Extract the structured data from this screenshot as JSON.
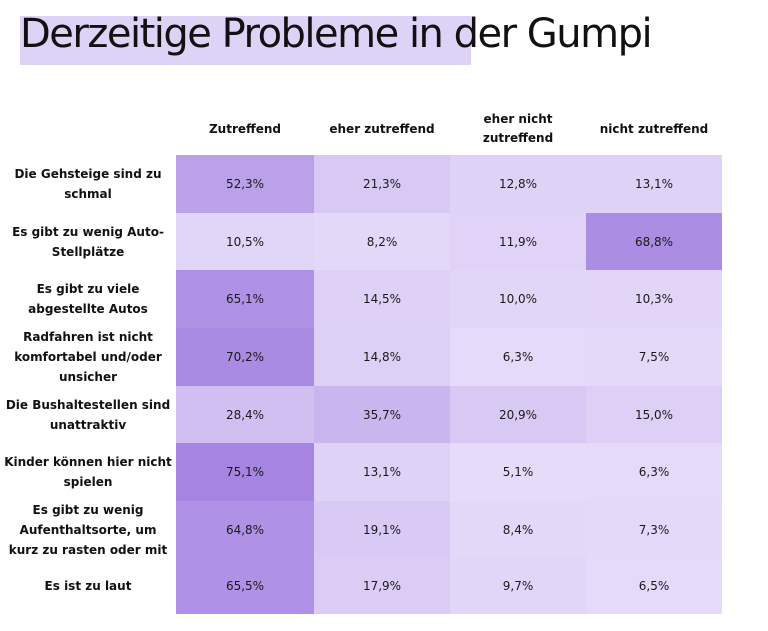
{
  "title": "Derzeitige Probleme in der Gumpi",
  "chart_data": {
    "type": "heatmap",
    "title": "Derzeitige Probleme in der Gumpi",
    "columns": [
      "Zutreffend",
      "eher zutreffend",
      "eher nicht zutreffend",
      "nicht zutreffend"
    ],
    "rows": [
      "Die Gehsteige sind zu schmal",
      "Es gibt zu wenig Auto-Stellplätze",
      "Es gibt zu viele abgestellte Autos",
      "Radfahren ist nicht komfortabel und/oder unsicher",
      "Die Bushaltestellen sind unattraktiv",
      "Kinder können hier nicht spielen",
      "Es gibt zu wenig Aufenthaltsorte, um kurz zu rasten oder mit",
      "Es ist zu laut"
    ],
    "values": [
      [
        52.3,
        21.3,
        12.8,
        13.1
      ],
      [
        10.5,
        8.2,
        11.9,
        68.8
      ],
      [
        65.1,
        14.5,
        10.0,
        10.3
      ],
      [
        70.2,
        14.8,
        6.3,
        7.5
      ],
      [
        28.4,
        35.7,
        20.9,
        15.0
      ],
      [
        75.1,
        13.1,
        5.1,
        6.3
      ],
      [
        64.8,
        19.1,
        8.4,
        7.3
      ],
      [
        65.5,
        17.9,
        9.7,
        6.5
      ]
    ],
    "labels": [
      [
        "52,3%",
        "21,3%",
        "12,8%",
        "13,1%"
      ],
      [
        "10,5%",
        "8,2%",
        "11,9%",
        "68,8%"
      ],
      [
        "65,1%",
        "14,5%",
        "10,0%",
        "10,3%"
      ],
      [
        "70,2%",
        "14,8%",
        "6,3%",
        "7,5%"
      ],
      [
        "28,4%",
        "35,7%",
        "20,9%",
        "15,0%"
      ],
      [
        "75,1%",
        "13,1%",
        "5,1%",
        "6,3%"
      ],
      [
        "64,8%",
        "19,1%",
        "8,4%",
        "7,3%"
      ],
      [
        "65,5%",
        "17,9%",
        "9,7%",
        "6,5%"
      ]
    ],
    "unit": "%",
    "colors": {
      "low": "#ebe2fb",
      "high": "#a685e2",
      "title_highlight": "#ddd3f6"
    },
    "legend": "none",
    "grid": false
  }
}
